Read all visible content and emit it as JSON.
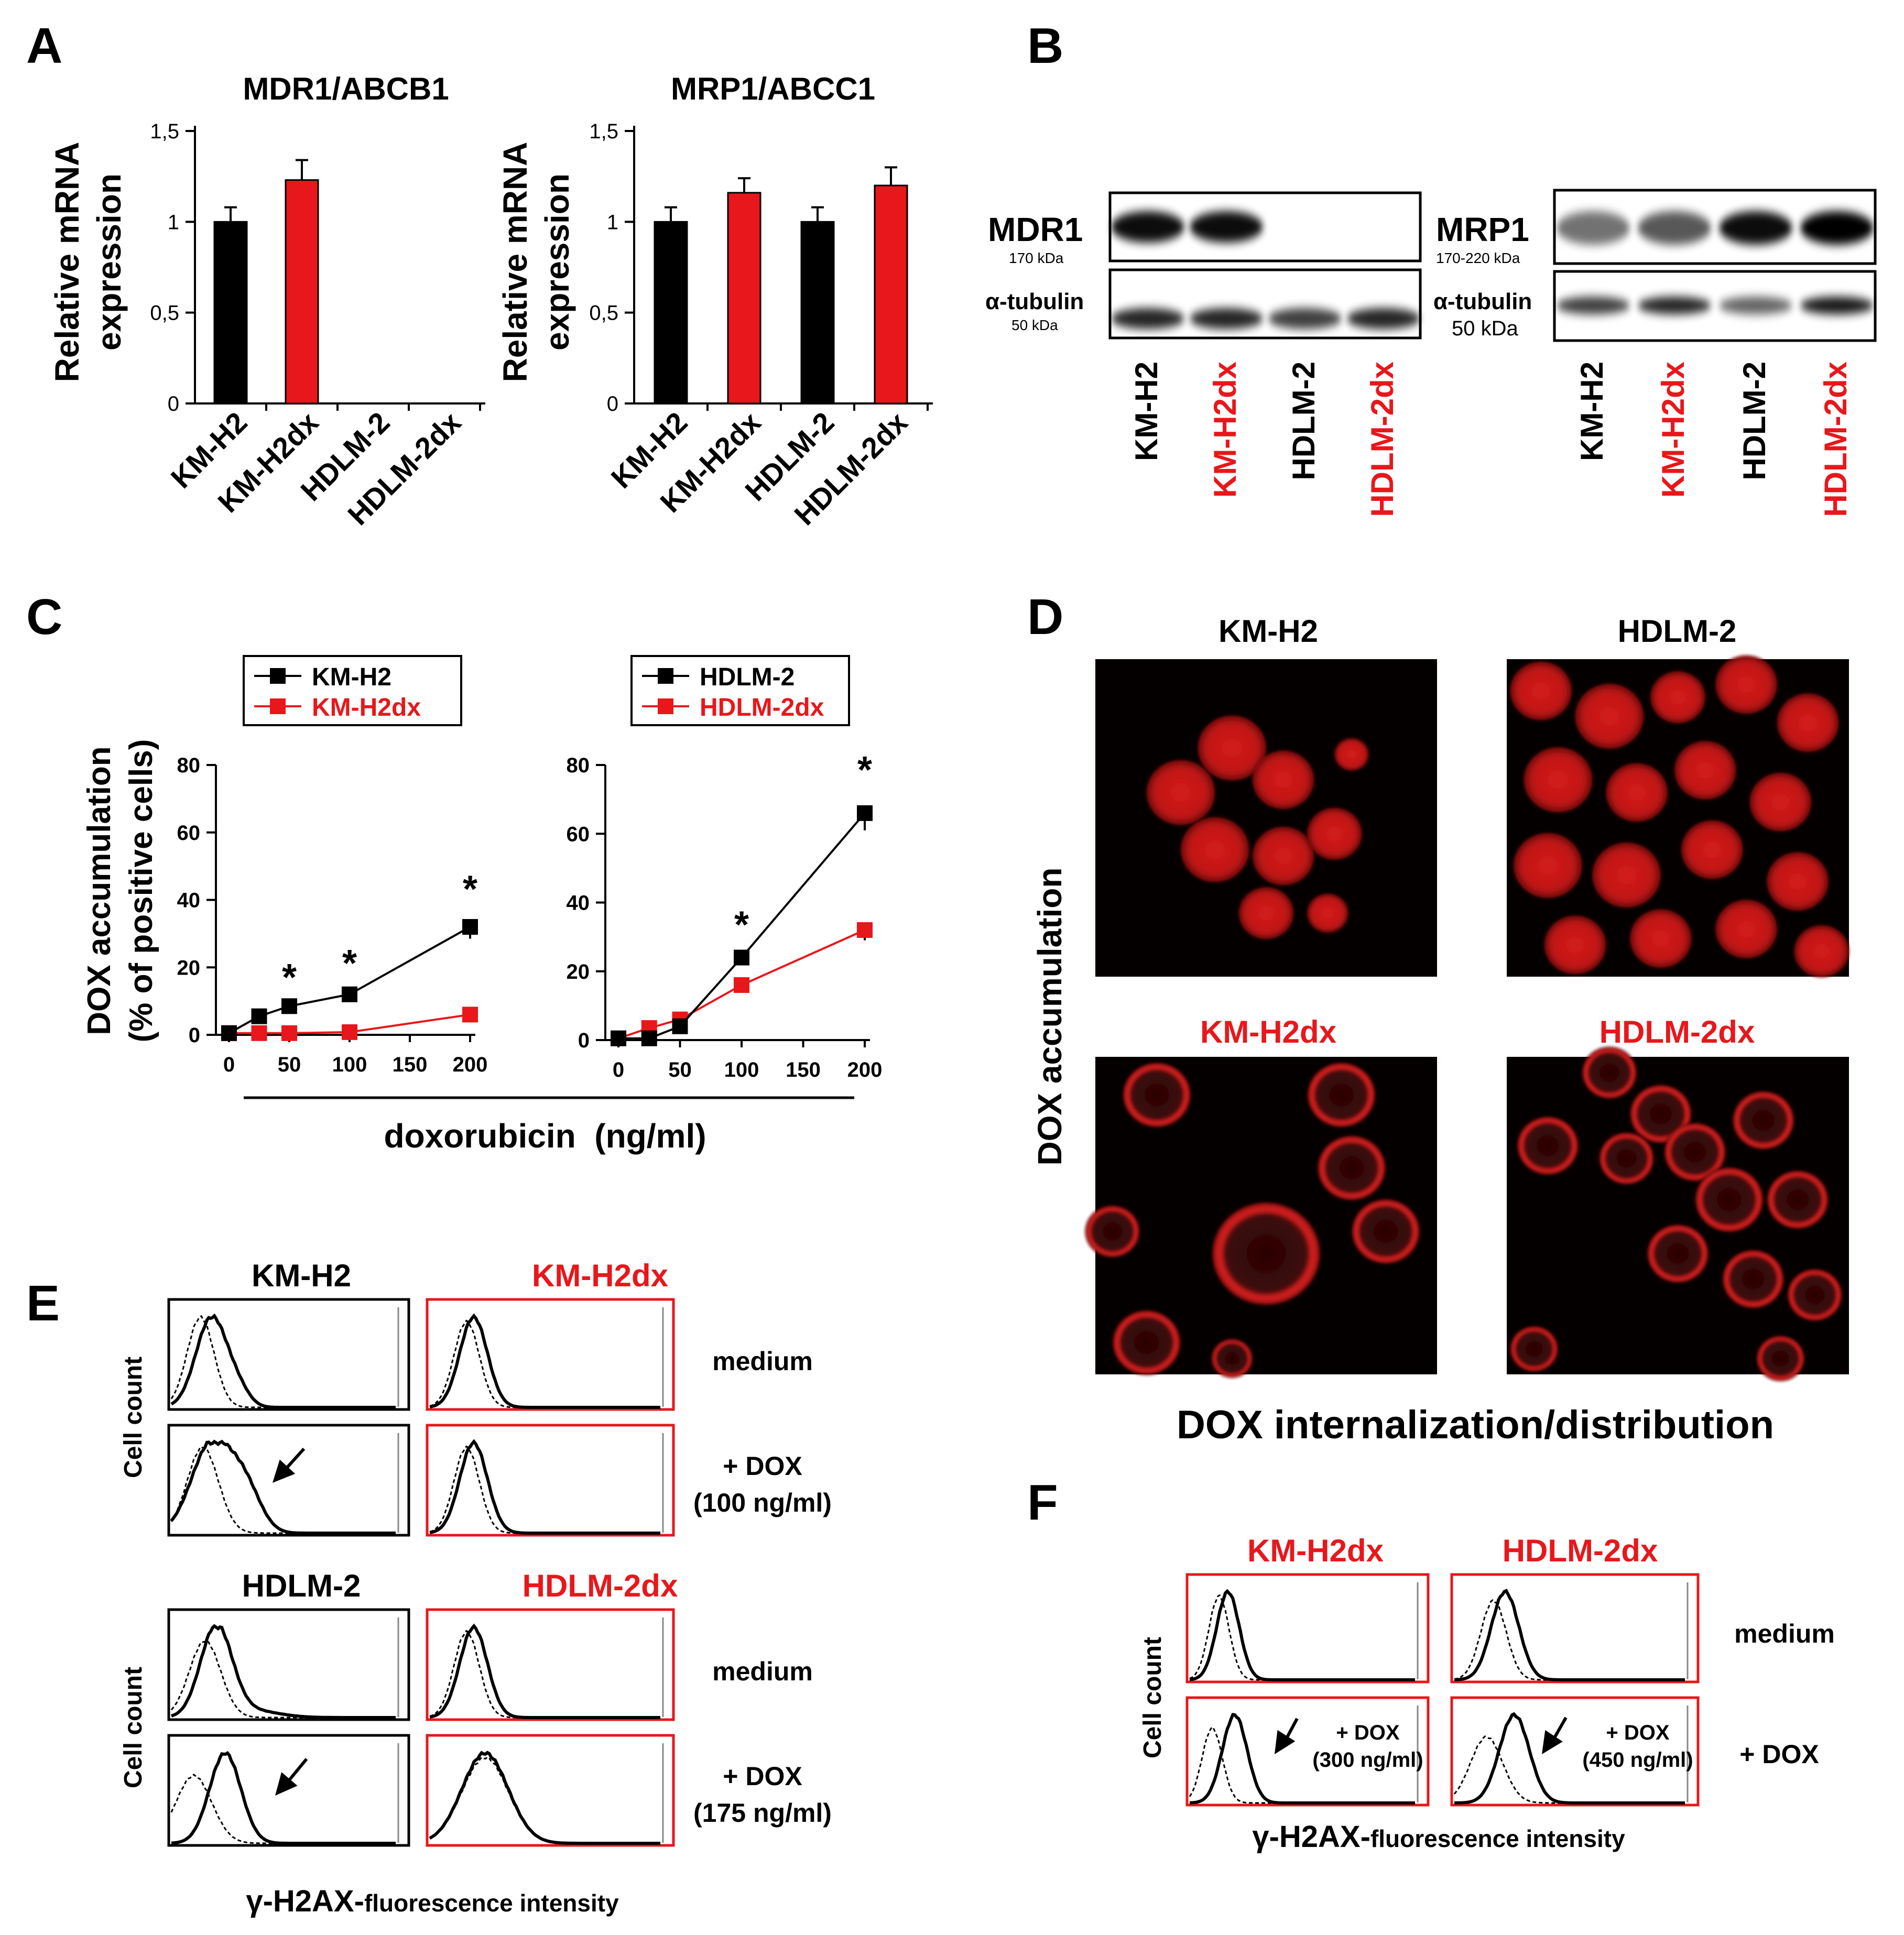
{
  "colors": {
    "black": "#000000",
    "red": "#e8171b",
    "micro_bg": "#050000",
    "cell_red": "#cf1b1b"
  },
  "panel_letters": {
    "a": "A",
    "b": "B",
    "c": "C",
    "d": "D",
    "e": "E",
    "f": "F"
  },
  "panelA": {
    "ylabel_line1": "Relative mRNA",
    "ylabel_line2": "expression",
    "charts": [
      {
        "title": "MDR1/ABCB1"
      },
      {
        "title": "MRP1/ABCC1"
      }
    ]
  },
  "panelB": {
    "blots": [
      {
        "protein": "MDR1",
        "protein_kda": "170 kDa",
        "loading": "α-tubulin",
        "loading_kda": "50 kDa",
        "lanes": [
          "KM-H2",
          "KM-H2dx",
          "HDLM-2",
          "HDLM-2dx"
        ],
        "lane_colors": [
          "black",
          "red",
          "black",
          "red"
        ],
        "protein_band_intensity": [
          0.95,
          0.95,
          0.0,
          0.0
        ],
        "tubulin_band_intensity": [
          0.85,
          0.85,
          0.75,
          0.85
        ]
      },
      {
        "protein": "MRP1",
        "protein_kda": "170-220 kDa",
        "loading": "α-tubulin",
        "loading_kda": "50 kDa",
        "lanes": [
          "KM-H2",
          "KM-H2dx",
          "HDLM-2",
          "HDLM-2dx"
        ],
        "lane_colors": [
          "black",
          "red",
          "black",
          "red"
        ],
        "protein_band_intensity": [
          0.55,
          0.65,
          0.95,
          1.0
        ],
        "tubulin_band_intensity": [
          0.75,
          0.85,
          0.6,
          0.9
        ]
      }
    ]
  },
  "panelC": {
    "ylabel_line1": "DOX accumulation",
    "ylabel_line2": "(% of positive cells)",
    "xlabel": "doxorubicin  (ng/ml)"
  },
  "panelD": {
    "ylabel": "DOX accumulation",
    "xlabel": "DOX internalization/distribution",
    "images": [
      {
        "label": "KM-H2",
        "color": "black",
        "pattern": "nuclear"
      },
      {
        "label": "HDLM-2",
        "color": "black",
        "pattern": "nuclear"
      },
      {
        "label": "KM-H2dx",
        "color": "red",
        "pattern": "membrane"
      },
      {
        "label": "HDLM-2dx",
        "color": "red",
        "pattern": "membrane"
      }
    ]
  },
  "panelE": {
    "ylabel": "Cell count",
    "xlabel_main": "γ-H2AX-",
    "xlabel_sub": "fluorescence intensity",
    "blocks": [
      {
        "left_title": "KM-H2",
        "right_title": "KM-H2dx",
        "row1_label": "medium",
        "row2_label_line1": "+ DOX",
        "row2_label_line2": "(100 ng/ml)"
      },
      {
        "left_title": "HDLM-2",
        "right_title": "HDLM-2dx",
        "row1_label": "medium",
        "row2_label_line1": "+ DOX",
        "row2_label_line2": "(175 ng/ml)"
      }
    ]
  },
  "panelF": {
    "left_title": "KM-H2dx",
    "right_title": "HDLM-2dx",
    "ylabel": "Cell count",
    "row1_label": "medium",
    "row2_label": "+ DOX",
    "inset_left_line1": "+ DOX",
    "inset_left_line2": "(300 ng/ml)",
    "inset_right_line1": "+ DOX",
    "inset_right_line2": "(450 ng/ml)",
    "xlabel_main": "γ-H2AX-",
    "xlabel_sub": "fluorescence intensity"
  },
  "chart_data": [
    {
      "type": "bar",
      "title": "MDR1/ABCB1",
      "ylabel": "Relative mRNA expression",
      "categories": [
        "KM-H2",
        "KM-H2dx",
        "HDLM-2",
        "HDLM-2dx"
      ],
      "values": [
        1.0,
        1.23,
        0,
        0
      ],
      "errors": [
        0.08,
        0.11,
        0,
        0
      ],
      "bar_colors": [
        "#000000",
        "#e8171b",
        "#000000",
        "#e8171b"
      ],
      "ylim": [
        0,
        1.5
      ],
      "yticks": [
        "0",
        "0,5",
        "1",
        "1,5"
      ],
      "grid": false
    },
    {
      "type": "bar",
      "title": "MRP1/ABCC1",
      "ylabel": "Relative mRNA expression",
      "categories": [
        "KM-H2",
        "KM-H2dx",
        "HDLM-2",
        "HDLM-2dx"
      ],
      "values": [
        1.0,
        1.16,
        1.0,
        1.2
      ],
      "errors": [
        0.08,
        0.08,
        0.08,
        0.1
      ],
      "bar_colors": [
        "#000000",
        "#e8171b",
        "#000000",
        "#e8171b"
      ],
      "ylim": [
        0,
        1.5
      ],
      "yticks": [
        "0",
        "0,5",
        "1",
        "1,5"
      ],
      "grid": false
    },
    {
      "type": "line",
      "xlabel": "doxorubicin  (ng/ml)",
      "ylabel": "DOX accumulation (% of positive cells)",
      "x": [
        0,
        25,
        50,
        100,
        200
      ],
      "xticks": [
        "0",
        "50",
        "100",
        "150",
        "200"
      ],
      "xlim": [
        0,
        200
      ],
      "ylim": [
        0,
        80
      ],
      "yticks": [
        "0",
        "20",
        "40",
        "60",
        "80"
      ],
      "legend_position": "top",
      "series": [
        {
          "name": "KM-H2",
          "color": "#000000",
          "values": [
            0.5,
            5.5,
            8.5,
            12,
            32
          ],
          "errors": [
            0.5,
            0.8,
            0.8,
            1.5,
            3.5
          ]
        },
        {
          "name": "KM-H2dx",
          "color": "#e8171b",
          "values": [
            0.5,
            0.5,
            0.5,
            0.8,
            6
          ],
          "errors": [
            0.3,
            0.3,
            0.3,
            0.3,
            0.8
          ]
        }
      ],
      "significance": [
        {
          "x": 50,
          "label": "*"
        },
        {
          "x": 100,
          "label": "*"
        },
        {
          "x": 200,
          "label": "*"
        }
      ]
    },
    {
      "type": "line",
      "xlabel": "doxorubicin  (ng/ml)",
      "ylabel": "DOX accumulation (% of positive cells)",
      "x": [
        0,
        25,
        50,
        100,
        200
      ],
      "xticks": [
        "0",
        "50",
        "100",
        "150",
        "200"
      ],
      "xlim": [
        0,
        200
      ],
      "ylim": [
        0,
        80
      ],
      "yticks": [
        "0",
        "20",
        "40",
        "60",
        "80"
      ],
      "legend_position": "top",
      "series": [
        {
          "name": "HDLM-2",
          "color": "#000000",
          "values": [
            0.5,
            0.5,
            4,
            24,
            66
          ],
          "errors": [
            0.5,
            0.5,
            1,
            2,
            5
          ]
        },
        {
          "name": "HDLM-2dx",
          "color": "#e8171b",
          "values": [
            0.5,
            3.5,
            6,
            16,
            32
          ],
          "errors": [
            0.5,
            0.8,
            1,
            1.5,
            3
          ]
        }
      ],
      "significance": [
        {
          "x": 100,
          "label": "*"
        },
        {
          "x": 200,
          "label": "*"
        }
      ]
    }
  ]
}
